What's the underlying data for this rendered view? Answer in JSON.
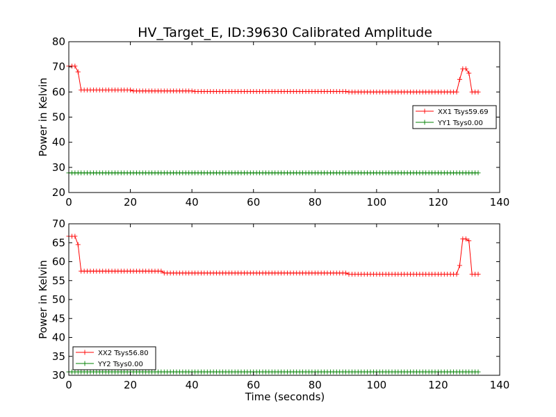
{
  "chart_data": [
    {
      "type": "line",
      "title": "HV_Target_E, ID:39630 Calibrated Amplitude",
      "xlabel": "",
      "ylabel": "Power in Kelvin",
      "xlim": [
        0,
        140
      ],
      "ylim": [
        20,
        80
      ],
      "xticks": [
        "0",
        "20",
        "40",
        "60",
        "80",
        "100",
        "120",
        "140"
      ],
      "yticks": [
        "20",
        "30",
        "40",
        "50",
        "60",
        "70",
        "80"
      ],
      "grid": false,
      "legend_position": "right",
      "marker": "+",
      "series": [
        {
          "name": "XX1 Tsys59.69",
          "color": "#ff0000",
          "segments": [
            {
              "x0": 0,
              "x1": 2,
              "y": 70.3
            },
            {
              "x0": 3,
              "x1": 3,
              "y": 68
            },
            {
              "x0": 4,
              "x1": 20,
              "y": 60.8
            },
            {
              "x0": 21,
              "x1": 40,
              "y": 60.4
            },
            {
              "x0": 41,
              "x1": 90,
              "y": 60.2
            },
            {
              "x0": 91,
              "x1": 126,
              "y": 60.0
            },
            {
              "x0": 127,
              "x1": 127,
              "y": 65
            },
            {
              "x0": 128,
              "x1": 129,
              "y": 69.2
            },
            {
              "x0": 130,
              "x1": 130,
              "y": 67.5
            },
            {
              "x0": 131,
              "x1": 133,
              "y": 60.0
            }
          ]
        },
        {
          "name": "YY1 Tsys0.00",
          "color": "#008000",
          "segments": [
            {
              "x0": 0,
              "x1": 133,
              "y": 27.8
            }
          ]
        }
      ]
    },
    {
      "type": "line",
      "title": "",
      "xlabel": "Time (seconds)",
      "ylabel": "Power in Kelvin",
      "xlim": [
        0,
        140
      ],
      "ylim": [
        30,
        70
      ],
      "xticks": [
        "0",
        "20",
        "40",
        "60",
        "80",
        "100",
        "120",
        "140"
      ],
      "yticks": [
        "30",
        "35",
        "40",
        "45",
        "50",
        "55",
        "60",
        "65",
        "70"
      ],
      "grid": false,
      "legend_position": "lower-left",
      "marker": "+",
      "series": [
        {
          "name": "XX2 Tsys56.80",
          "color": "#ff0000",
          "segments": [
            {
              "x0": 0,
              "x1": 2,
              "y": 66.7
            },
            {
              "x0": 3,
              "x1": 3,
              "y": 64.5
            },
            {
              "x0": 4,
              "x1": 30,
              "y": 57.5
            },
            {
              "x0": 31,
              "x1": 90,
              "y": 57.0
            },
            {
              "x0": 91,
              "x1": 126,
              "y": 56.7
            },
            {
              "x0": 127,
              "x1": 127,
              "y": 59
            },
            {
              "x0": 128,
              "x1": 129,
              "y": 66.0
            },
            {
              "x0": 130,
              "x1": 130,
              "y": 65.5
            },
            {
              "x0": 131,
              "x1": 133,
              "y": 56.7
            }
          ]
        },
        {
          "name": "YY2 Tsys0.00",
          "color": "#008000",
          "segments": [
            {
              "x0": 0,
              "x1": 133,
              "y": 30.9
            }
          ]
        }
      ]
    }
  ]
}
